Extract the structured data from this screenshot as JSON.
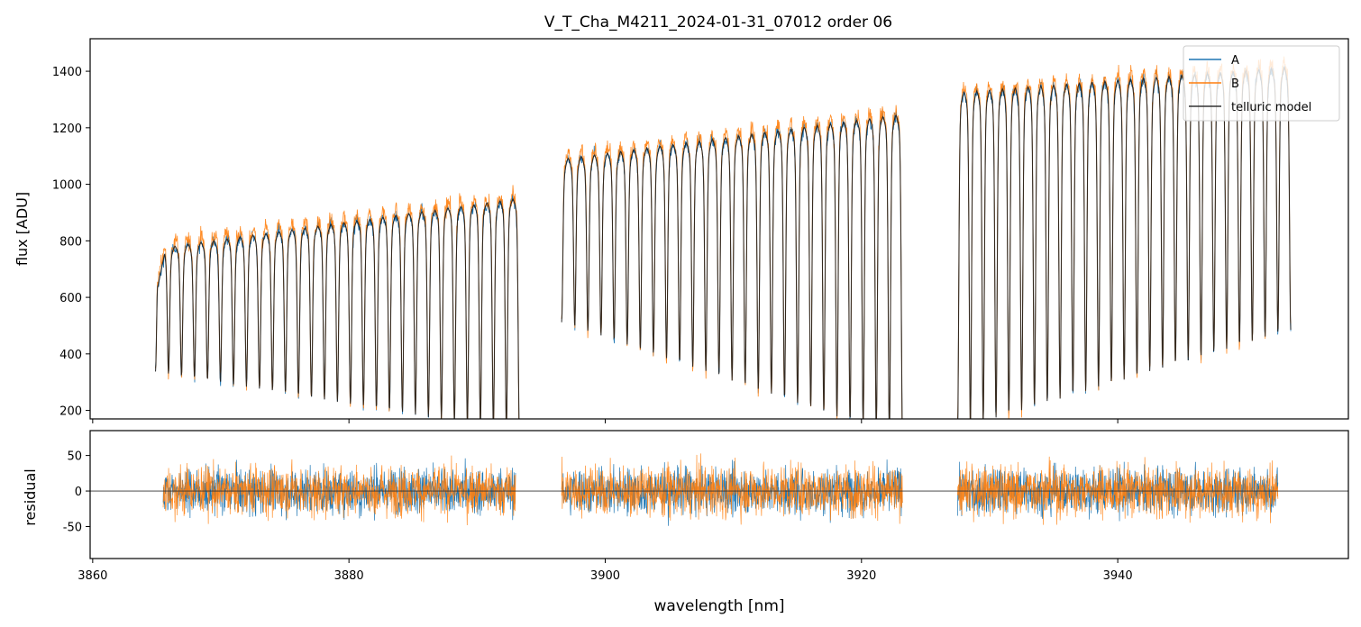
{
  "chart_data": [
    {
      "type": "line",
      "title": "V_T_Cha_M4211_2024-01-31_07012  order 06",
      "xlabel": "",
      "ylabel": "flux [ADU]",
      "xlim": [
        3859.8,
        3958.0
      ],
      "ylim": [
        170,
        1515
      ],
      "xticks": [
        3860,
        3880,
        3900,
        3920,
        3940
      ],
      "yticks": [
        200,
        400,
        600,
        800,
        1000,
        1200,
        1400
      ],
      "legend_position": "upper right",
      "series": [
        {
          "name": "A",
          "color": "#1f77b4"
        },
        {
          "name": "B",
          "color": "#ff7f0e"
        },
        {
          "name": "telluric model",
          "color": "#000000"
        }
      ],
      "segments": [
        {
          "x_start": 3864.9,
          "x_end": 3893.3,
          "line_count": 28,
          "continuum_start": 780,
          "continuum_end": 960,
          "line_min_start": 400,
          "line_min_end": 200
        },
        {
          "x_start": 3896.6,
          "x_end": 3923.2,
          "line_count": 26,
          "continuum_start": 1100,
          "continuum_end": 1260,
          "line_min_start": 600,
          "line_min_end": 200
        },
        {
          "x_start": 3927.5,
          "x_end": 3953.5,
          "line_count": 26,
          "continuum_start": 1340,
          "continuum_end": 1430,
          "line_min_start": 240,
          "line_min_end": 600
        }
      ]
    },
    {
      "type": "line",
      "title": "",
      "xlabel": "wavelength [nm]",
      "ylabel": "residual",
      "xlim": [
        3859.8,
        3958.0
      ],
      "ylim": [
        -95,
        85
      ],
      "xticks": [
        3860,
        3880,
        3900,
        3920,
        3940
      ],
      "yticks": [
        -50,
        0,
        50
      ],
      "series": [
        {
          "name": "A",
          "color": "#1f77b4"
        },
        {
          "name": "B",
          "color": "#ff7f0e"
        }
      ],
      "segments": [
        {
          "x_start": 3865.5,
          "x_end": 3893.0
        },
        {
          "x_start": 3896.6,
          "x_end": 3923.2
        },
        {
          "x_start": 3927.5,
          "x_end": 3952.5
        }
      ],
      "residual_scatter": 30
    }
  ],
  "labels": {
    "title": "V_T_Cha_M4211_2024-01-31_07012  order 06",
    "xlabel": "wavelength [nm]",
    "ylabel_top": "flux [ADU]",
    "ylabel_bottom": "residual",
    "legend": [
      "A",
      "B",
      "telluric model"
    ]
  }
}
